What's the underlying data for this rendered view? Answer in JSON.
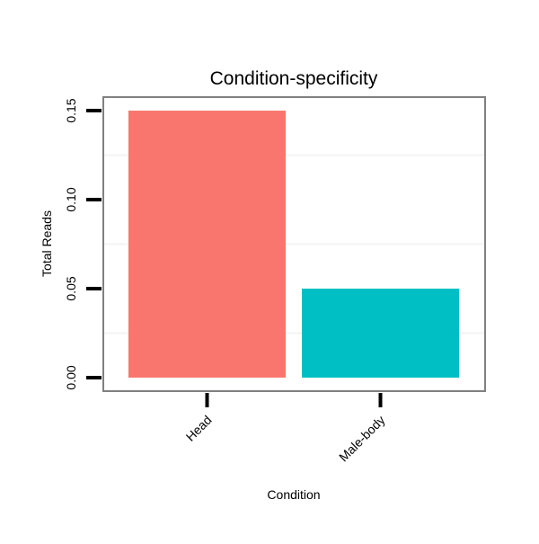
{
  "chart_data": {
    "type": "bar",
    "title": "Condition-specificity",
    "xlabel": "Condition",
    "ylabel": "Total Reads",
    "categories": [
      "Head",
      "Male-body"
    ],
    "values": [
      0.15,
      0.05
    ],
    "colors": [
      "#F8766D",
      "#00BFC4"
    ],
    "ylim": [
      -0.0076,
      0.1576
    ],
    "yticks": [
      0,
      0.05,
      0.1,
      0.15
    ],
    "ytick_labels": [
      "0.00",
      "0.05",
      "0.10",
      "0.15"
    ],
    "grid": true,
    "legend": "none"
  }
}
